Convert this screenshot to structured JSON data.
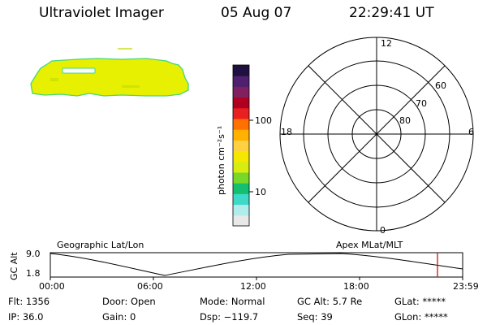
{
  "header": {
    "instrument": "Ultraviolet Imager",
    "date": "05 Aug 07",
    "time": "22:29:41 UT"
  },
  "colorbar": {
    "unit_label": "photon cm⁻²s⁻¹",
    "tick_100": "100",
    "tick_10": "10",
    "colors": [
      "#e8e8e8",
      "#b0ecec",
      "#3fd9c8",
      "#14c070",
      "#78d82a",
      "#d8ec10",
      "#f4e800",
      "#ffd040",
      "#ffb000",
      "#ff7000",
      "#e82020",
      "#b00020",
      "#802060",
      "#502070",
      "#201040"
    ]
  },
  "polar": {
    "mlt_top": "12",
    "mlt_bottom": "0",
    "mlt_left": "18",
    "mlt_right": "6",
    "lat_60": "60",
    "lat_70": "70",
    "lat_80": "80"
  },
  "timeline": {
    "y_axis_label": "GC Alt",
    "y_top": "9.0",
    "y_bottom": "1.8",
    "left_title": "Geographic Lat/Lon",
    "right_title": "Apex MLat/MLT",
    "x_ticks": [
      "00:00",
      "06:00",
      "12:00",
      "18:00",
      "23:59"
    ],
    "current_time_marker": "22:29:41"
  },
  "footer": {
    "flt": "Flt: 1356",
    "door": "Door: Open",
    "mode": "Mode: Normal",
    "gc_alt": "GC Alt: 5.7 Re",
    "glat": "GLat: *****",
    "ip": "IP: 36.0",
    "gain": "Gain:  0",
    "dsp": "Dsp: −119.7",
    "seq": "Seq: 39",
    "glon": "GLon: *****"
  },
  "image_colors": {
    "emission_fill": "#e6f000",
    "emission_edge": "#44d878",
    "marker_line": "#c8e020",
    "time_marker": "#d01010"
  }
}
